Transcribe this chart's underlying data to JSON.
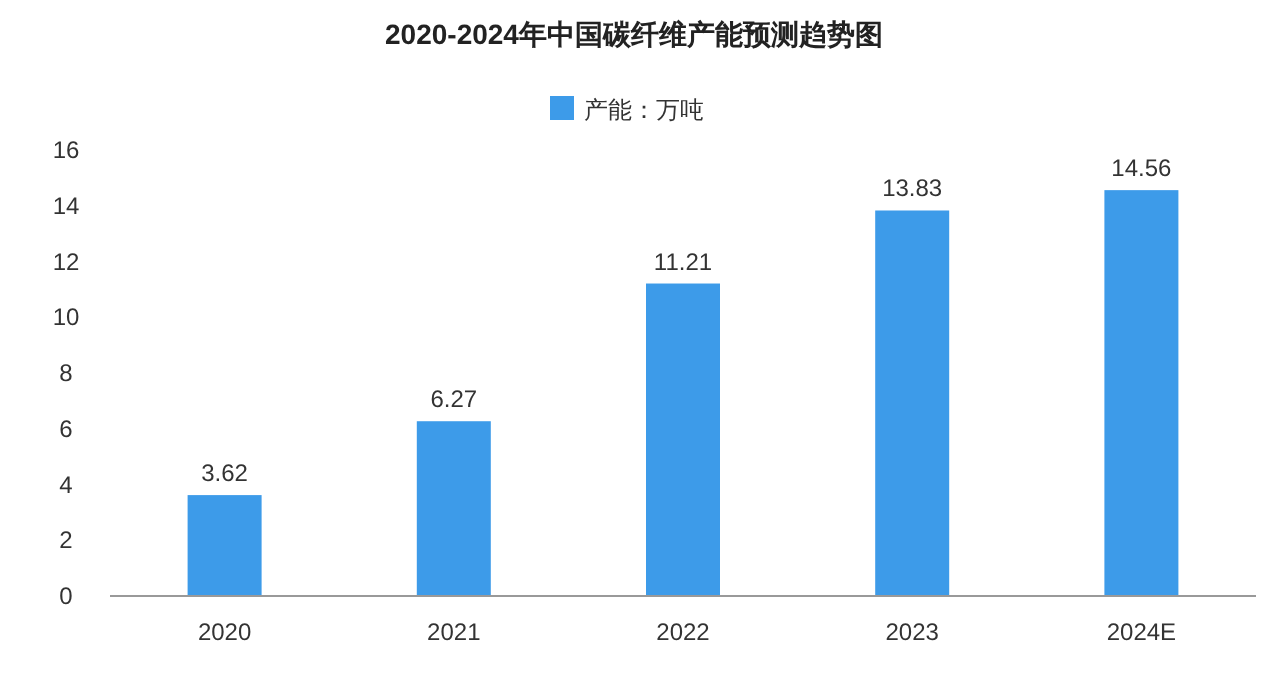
{
  "chart_data": {
    "type": "bar",
    "title": "2020-2024年中国碳纤维产能预测趋势图",
    "categories": [
      "2020",
      "2021",
      "2022",
      "2023",
      "2024E"
    ],
    "series": [
      {
        "name": "产能：万吨",
        "color": "#3d9be9",
        "values": [
          3.62,
          6.27,
          11.21,
          13.83,
          14.56
        ]
      }
    ],
    "ylim": [
      0,
      16
    ],
    "yticks": [
      0,
      2,
      4,
      6,
      8,
      10,
      12,
      14,
      16
    ],
    "data_labels": true,
    "legend": "top"
  }
}
